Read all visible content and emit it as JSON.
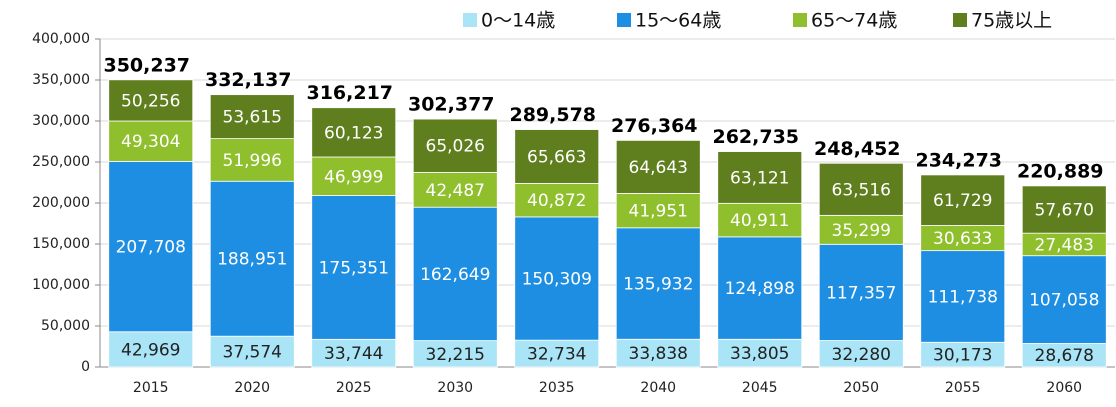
{
  "chart_data": {
    "type": "stacked_bar",
    "categories": [
      "2015",
      "2020",
      "2025",
      "2030",
      "2035",
      "2040",
      "2045",
      "2050",
      "2055",
      "2060"
    ],
    "series": [
      {
        "name": "0〜14歳",
        "color": "#a9e4f7",
        "label_color": "#222222",
        "values": [
          42969,
          37574,
          33744,
          32215,
          32734,
          33838,
          33805,
          32280,
          30173,
          28678
        ],
        "value_labels": [
          "42,969",
          "37,574",
          "33,744",
          "32,215",
          "32,734",
          "33,838",
          "33,805",
          "32,280",
          "30,173",
          "28,678"
        ]
      },
      {
        "name": "15〜64歳",
        "color": "#1e8ee3",
        "label_color": "#ffffff",
        "values": [
          207708,
          188951,
          175351,
          162649,
          150309,
          135932,
          124898,
          117357,
          111738,
          107058
        ],
        "value_labels": [
          "207,708",
          "188,951",
          "175,351",
          "162,649",
          "150,309",
          "135,932",
          "124,898",
          "117,357",
          "111,738",
          "107,058"
        ]
      },
      {
        "name": "65〜74歳",
        "color": "#8fbf2c",
        "label_color": "#ffffff",
        "values": [
          49304,
          51996,
          46999,
          42487,
          40872,
          41951,
          40911,
          35299,
          30633,
          27483
        ],
        "value_labels": [
          "49,304",
          "51,996",
          "46,999",
          "42,487",
          "40,872",
          "41,951",
          "40,911",
          "35,299",
          "30,633",
          "27,483"
        ]
      },
      {
        "name": "75歳以上",
        "color": "#5f7f1f",
        "label_color": "#ffffff",
        "values": [
          50256,
          53615,
          60123,
          65026,
          65663,
          64643,
          63121,
          63516,
          61729,
          57670
        ],
        "value_labels": [
          "50,256",
          "53,615",
          "60,123",
          "65,026",
          "65,663",
          "64,643",
          "63,121",
          "63,516",
          "61,729",
          "57,670"
        ]
      }
    ],
    "totals": [
      350237,
      332137,
      316217,
      302377,
      289578,
      276364,
      262735,
      248452,
      234273,
      220889
    ],
    "total_labels": [
      "350,237",
      "332,137",
      "316,217",
      "302,377",
      "289,578",
      "276,364",
      "262,735",
      "248,452",
      "234,273",
      "220,889"
    ],
    "ylim": [
      0,
      400000
    ],
    "yticks": [
      0,
      {
        "value": 50000,
        "label": "50,000"
      },
      {
        "value": 100000,
        "label": "100,000"
      },
      {
        "value": 150000,
        "label": "150,000"
      },
      {
        "value": 200000,
        "label": "200,000"
      },
      {
        "value": 250000,
        "label": "250,000"
      },
      {
        "value": 300000,
        "label": "300,000"
      },
      {
        "value": 350000,
        "label": "350,000"
      },
      {
        "value": 400000,
        "label": "400,000"
      }
    ],
    "grid": true
  }
}
